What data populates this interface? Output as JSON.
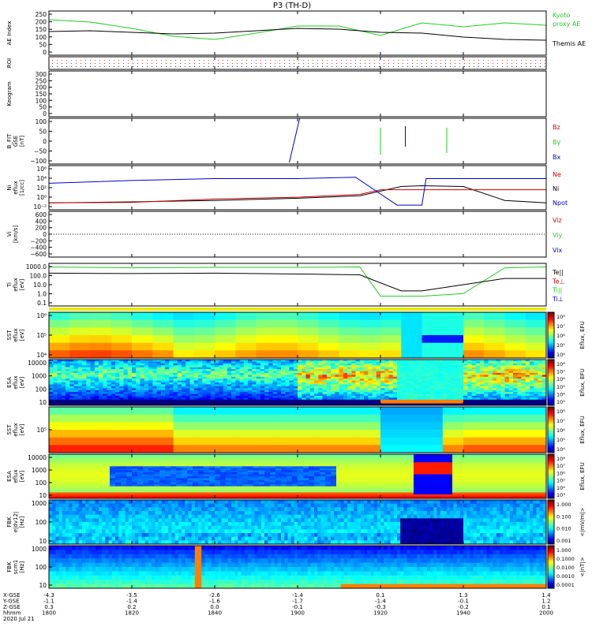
{
  "title": "P3 (TH-D)",
  "panels": [
    {
      "id": "ae",
      "ylabel": [
        "AE Index"
      ],
      "yticks": [
        "250",
        "200",
        "150",
        "100",
        "50",
        "0"
      ],
      "legend": [
        {
          "text": "Kyoto",
          "color": "#22cc22"
        },
        {
          "text": "proxy AE",
          "color": "#22cc22"
        },
        {
          "text": "Themis AE",
          "color": "#000000"
        }
      ]
    },
    {
      "id": "roi",
      "ylabel": [
        "ROI"
      ],
      "yticks": [],
      "legend": []
    },
    {
      "id": "keogram",
      "ylabel": [
        "Keogram"
      ],
      "yticks": [
        "300",
        "250",
        "200",
        "150",
        "100",
        "50",
        "0"
      ],
      "legend": []
    },
    {
      "id": "bfit",
      "ylabel": [
        "B_FIT",
        "GSE",
        "[nT]"
      ],
      "yticks": [
        "100",
        "50",
        "0",
        "−50",
        "−100"
      ],
      "legend": [
        {
          "text": "Bz",
          "color": "#cc0000"
        },
        {
          "text": "By",
          "color": "#22cc22"
        },
        {
          "text": "Bx",
          "color": "#0000cc"
        }
      ]
    },
    {
      "id": "ni",
      "ylabel": [
        "Ni",
        "eflux",
        "[1/cc]"
      ],
      "yticks": [
        "10⁶",
        "10⁴",
        "10²",
        "10⁰",
        "10⁻²"
      ],
      "legend": [
        {
          "text": "Ne",
          "color": "#cc0000"
        },
        {
          "text": "Ni",
          "color": "#000000"
        },
        {
          "text": "Npot",
          "color": "#0000cc"
        }
      ]
    },
    {
      "id": "vi",
      "ylabel": [
        "Vi",
        "[km/s]"
      ],
      "yticks": [
        "600",
        "400",
        "200",
        "0",
        "−200",
        "−400",
        "−600"
      ],
      "legend": [
        {
          "text": "Viz",
          "color": "#cc0000"
        },
        {
          "text": "Viy",
          "color": "#22cc22"
        },
        {
          "text": "Vix",
          "color": "#0000cc"
        }
      ]
    },
    {
      "id": "ti",
      "ylabel": [
        "Ti",
        "eflux",
        "[eV]"
      ],
      "yticks": [
        "1000.0",
        "100.0",
        "10.0",
        "1.0",
        "0.1"
      ],
      "legend": [
        {
          "text": "Te||",
          "color": "#000000"
        },
        {
          "text": "Te⊥",
          "color": "#cc0000"
        },
        {
          "text": "Ti||",
          "color": "#22cc22"
        },
        {
          "text": "Ti⊥",
          "color": "#0000cc"
        }
      ]
    },
    {
      "id": "sst_i",
      "ylabel": [
        "SST",
        "eflux",
        "[eV]"
      ],
      "yticks": [
        "10⁶",
        "10⁵",
        "10⁴"
      ],
      "cbar": [
        "10⁸",
        "10⁷",
        "10⁶",
        "10⁵",
        "10⁴"
      ],
      "cbar_label": "Eflux, EFU"
    },
    {
      "id": "esa_i",
      "ylabel": [
        "ESA",
        "eflux",
        "[eV]"
      ],
      "yticks": [
        "10000",
        "1000",
        "100",
        "10"
      ],
      "cbar": [
        "10⁸",
        "10⁷",
        "10⁶",
        "10⁵",
        "10⁴",
        "10³"
      ],
      "cbar_label": "Eflux, EFU"
    },
    {
      "id": "sst_e",
      "ylabel": [
        "SST",
        "eflux",
        "[eV]"
      ],
      "yticks": [
        "10⁵"
      ],
      "cbar": [
        "10⁸",
        "10⁷",
        "10⁶",
        "10⁵",
        "10⁴"
      ],
      "cbar_label": "Eflux, EFU"
    },
    {
      "id": "esa_e",
      "ylabel": [
        "ESA",
        "eflux",
        "[eV]"
      ],
      "yticks": [
        "10000",
        "1000",
        "100",
        "10"
      ],
      "cbar": [
        "10⁸",
        "10⁷",
        "10⁶",
        "10⁵",
        "10⁴",
        "10³"
      ],
      "cbar_label": "Eflux, EFU"
    },
    {
      "id": "fbk_e",
      "ylabel": [
        "FBK",
        "e|dv12|",
        "[Hz]"
      ],
      "yticks": [
        "1000",
        "100",
        "10"
      ],
      "cbar": [
        "1.000",
        "0.100",
        "0.010",
        "0.001"
      ],
      "cbar_label": "<|mV/m|>"
    },
    {
      "id": "fbk_b",
      "ylabel": [
        "FBK",
        "scm1",
        "[Hz]"
      ],
      "yticks": [
        "1000",
        "100",
        "10"
      ],
      "cbar": [
        "1.000",
        "0.1000",
        "0.0100",
        "0.0010",
        "0.0001"
      ],
      "cbar_label": "<|nT|>"
    }
  ],
  "xaxis": {
    "row_labels": [
      "X-GSE",
      "Y-GSE",
      "Z-GSE",
      "hhmm",
      "2020 Jul 21"
    ],
    "ticks": [
      {
        "x": [
          "-4.3",
          "-1.1",
          "0.3"
        ],
        "time": "1800"
      },
      {
        "x": [
          "-3.5",
          "-1.4",
          "0.2"
        ],
        "time": "1820"
      },
      {
        "x": [
          "-2.6",
          "-1.6",
          "0.0"
        ],
        "time": "1840"
      },
      {
        "x": [
          "-1.4",
          "-1.7",
          "-0.1"
        ],
        "time": "1900"
      },
      {
        "x": [
          "0.1",
          "-1.4",
          "-0.3"
        ],
        "time": "1920"
      },
      {
        "x": [
          "1.3",
          "-0.1",
          "-0.2"
        ],
        "time": "1940"
      },
      {
        "x": [
          "1.4",
          "1.2",
          "0.1"
        ],
        "time": "2000"
      }
    ]
  },
  "chart_data": {
    "type": "line",
    "x_unit": "UT minutes since 18:00 (hhmm axis 1800–2000)",
    "series": [
      {
        "name": "Kyoto proxy AE",
        "panel": "AE Index",
        "x": [
          0,
          10,
          20,
          30,
          40,
          50,
          60,
          70,
          80,
          90,
          100,
          110,
          120
        ],
        "y": [
          205,
          190,
          150,
          100,
          80,
          120,
          165,
          165,
          105,
          185,
          160,
          185,
          170
        ]
      },
      {
        "name": "Themis AE",
        "panel": "AE Index",
        "x": [
          0,
          10,
          20,
          30,
          40,
          50,
          60,
          70,
          80,
          90,
          100,
          110,
          120
        ],
        "y": [
          130,
          135,
          125,
          115,
          120,
          135,
          150,
          145,
          125,
          120,
          95,
          80,
          75
        ]
      },
      {
        "name": "Ni",
        "panel": "Ni",
        "x": [
          0,
          20,
          40,
          60,
          75,
          85,
          90,
          100,
          110,
          120
        ],
        "y": [
          0.03,
          0.05,
          0.1,
          0.3,
          1,
          100,
          150,
          100,
          0.1,
          0.03
        ]
      },
      {
        "name": "Ne",
        "panel": "Ni",
        "x": [
          0,
          20,
          40,
          60,
          75,
          80,
          90,
          100,
          110,
          120
        ],
        "y": [
          0.03,
          0.04,
          0.2,
          0.5,
          2,
          20,
          20,
          20,
          20,
          20
        ]
      },
      {
        "name": "Npot",
        "panel": "Ni",
        "x": [
          0,
          20,
          40,
          60,
          74,
          84,
          90,
          91,
          120
        ],
        "y": [
          500,
          2000,
          5000,
          5000,
          10000,
          0.01,
          0.01,
          5000,
          5000
        ]
      },
      {
        "name": "Ti||",
        "panel": "Ti",
        "x": [
          0,
          20,
          40,
          60,
          75,
          80,
          90,
          100,
          110,
          120
        ],
        "y": [
          1000,
          800,
          900,
          900,
          1000,
          0.5,
          0.5,
          1,
          800,
          1000
        ]
      },
      {
        "name": "Te||",
        "panel": "Ti",
        "x": [
          0,
          20,
          40,
          60,
          75,
          85,
          90,
          100,
          110,
          120
        ],
        "y": [
          200,
          180,
          200,
          160,
          130,
          2,
          2,
          10,
          50,
          50
        ]
      }
    ]
  }
}
